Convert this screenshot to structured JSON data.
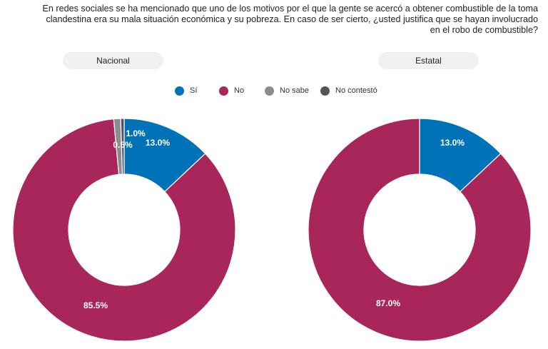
{
  "question": "En redes sociales se ha mencionado que uno de los motivos por el que la gente se acercó a obtener combustible de la toma clandestina era su mala situación económica y su pobreza. En caso de ser cierto, ¿usted justifica que se hayan involucrado en el robo de combustible?",
  "legend": [
    {
      "label": "Sí",
      "color": "#0072b8"
    },
    {
      "label": "No",
      "color": "#a8265a"
    },
    {
      "label": "No sabe",
      "color": "#8c8c8c"
    },
    {
      "label": "No contestó",
      "color": "#555555"
    }
  ],
  "chart_data": [
    {
      "type": "pie",
      "title": "Nacional",
      "categories": [
        "Sí",
        "No",
        "No sabe",
        "No contestó"
      ],
      "values": [
        13.0,
        85.5,
        1.0,
        0.5
      ],
      "labels": [
        "13.0%",
        "85.5%",
        "1.0%",
        "0.5%"
      ],
      "colors": [
        "#0072b8",
        "#a8265a",
        "#8c8c8c",
        "#555555"
      ]
    },
    {
      "type": "pie",
      "title": "Estatal",
      "categories": [
        "Sí",
        "No",
        "No sabe",
        "No contestó"
      ],
      "values": [
        13.0,
        87.0,
        0,
        0
      ],
      "labels": [
        "13.0%",
        "87.0%",
        "",
        ""
      ],
      "colors": [
        "#0072b8",
        "#a8265a",
        "#8c8c8c",
        "#555555"
      ]
    }
  ]
}
